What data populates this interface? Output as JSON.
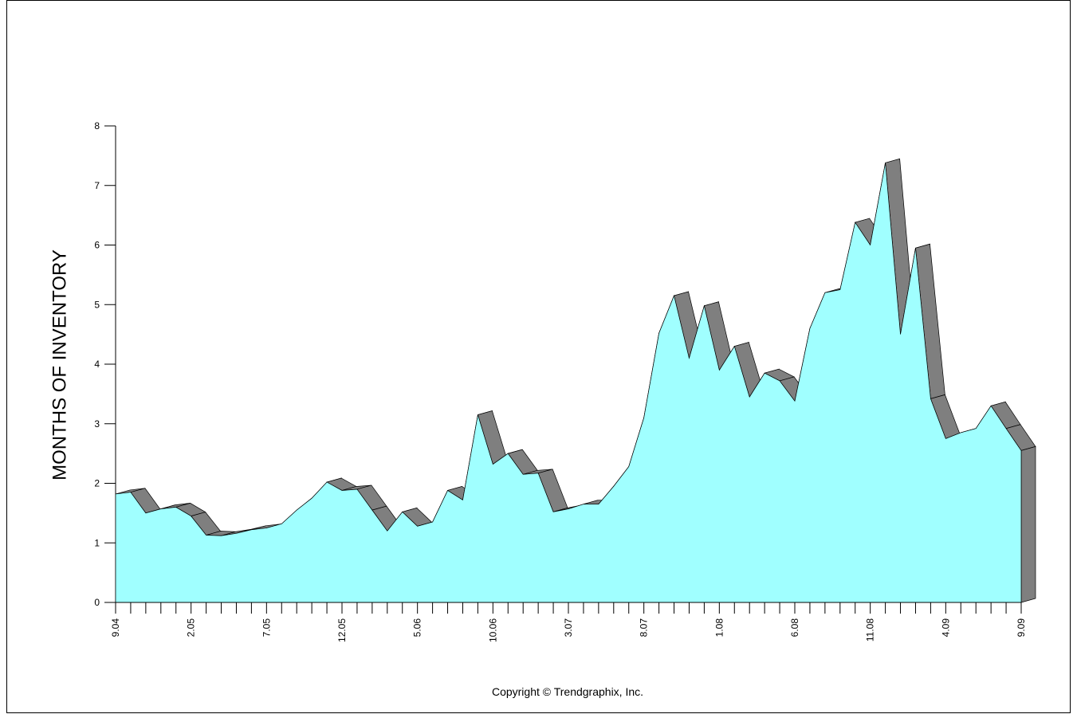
{
  "chart_data": {
    "type": "area3d",
    "y_label": "MONTHS OF INVENTORY",
    "footer": "Copyright © Trendgraphix, Inc.",
    "categories": [
      "9.04",
      null,
      null,
      null,
      null,
      "2.05",
      null,
      null,
      null,
      null,
      "7.05",
      null,
      null,
      null,
      null,
      "12.05",
      null,
      null,
      null,
      null,
      "5.06",
      null,
      null,
      null,
      null,
      "10.06",
      null,
      null,
      null,
      null,
      "3.07",
      null,
      null,
      null,
      null,
      "8.07",
      null,
      null,
      null,
      null,
      "1.08",
      null,
      null,
      null,
      null,
      "6.08",
      null,
      null,
      null,
      null,
      "11.08",
      null,
      null,
      null,
      null,
      "4.09",
      null,
      null,
      null,
      null,
      "9.09"
    ],
    "values": [
      1.82,
      1.85,
      1.5,
      1.57,
      1.6,
      1.45,
      1.13,
      1.12,
      1.16,
      1.22,
      1.25,
      1.32,
      1.55,
      1.75,
      2.02,
      1.88,
      1.9,
      1.55,
      1.2,
      1.52,
      1.28,
      1.35,
      1.88,
      1.72,
      3.15,
      2.32,
      2.5,
      2.15,
      2.17,
      1.52,
      1.57,
      1.65,
      1.65,
      1.95,
      2.28,
      3.1,
      4.52,
      5.15,
      4.1,
      4.98,
      3.9,
      4.3,
      3.45,
      3.85,
      3.72,
      3.38,
      4.6,
      5.2,
      5.25,
      6.38,
      6.0,
      7.38,
      4.5,
      5.95,
      3.42,
      2.75,
      2.85,
      2.92,
      3.3,
      2.92,
      2.55
    ],
    "color": "#a0ffff",
    "depth_color": "#7f7f7f",
    "ylim": [
      0,
      8
    ],
    "yticks": [
      0,
      1,
      2,
      3,
      4,
      5,
      6,
      7,
      8
    ]
  }
}
